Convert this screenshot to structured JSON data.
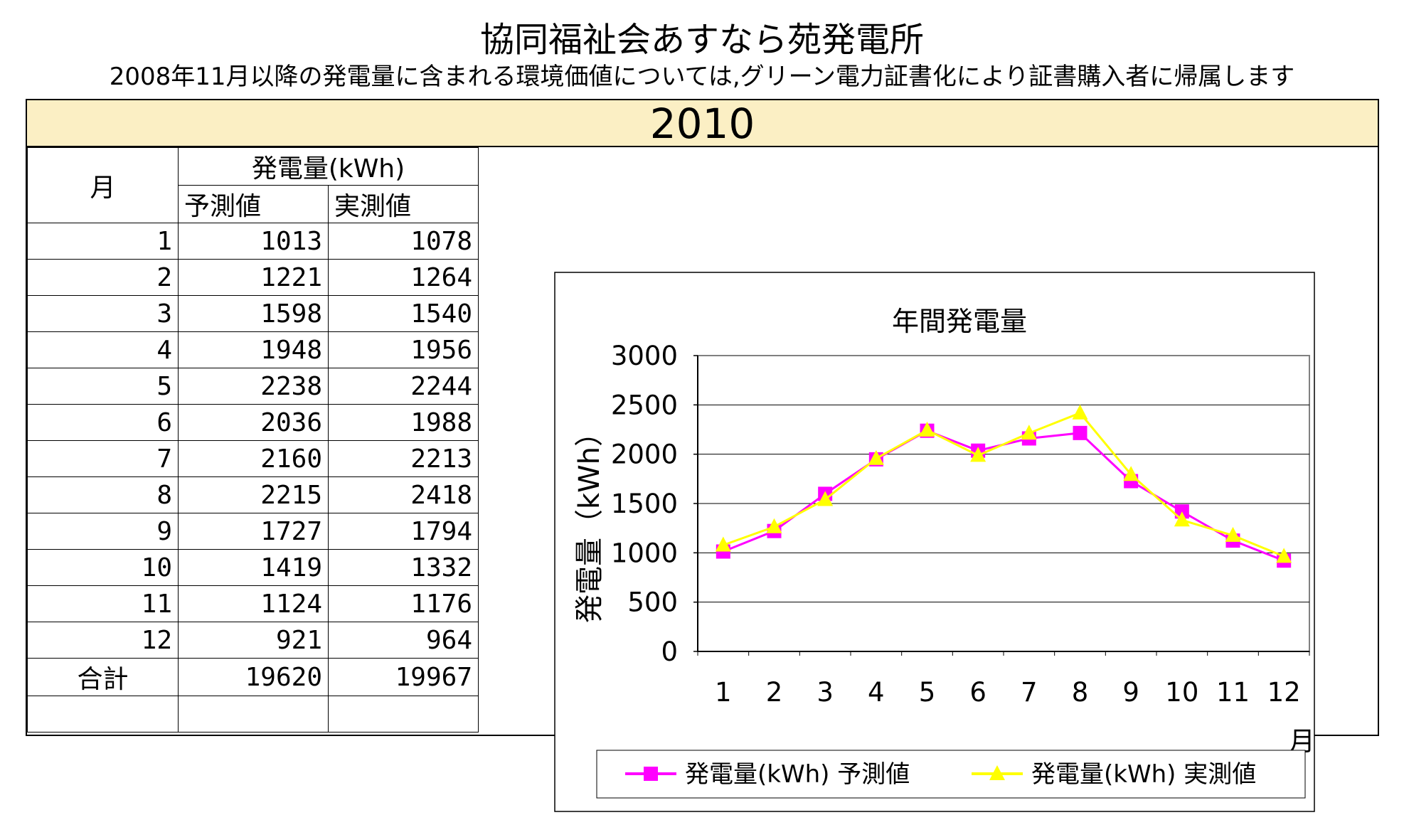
{
  "header": {
    "title": "協同福祉会あすなら苑発電所",
    "subtitle": "2008年11月以降の発電量に含まれる環境価値については,グリーン電力証書化により証書購入者に帰属します",
    "year": "2010"
  },
  "table": {
    "month_header": "月",
    "group_header": "発電量(kWh)",
    "col_forecast": "予測値",
    "col_actual": "実測値",
    "rows": [
      {
        "month": "1",
        "forecast": "1013",
        "actual": "1078"
      },
      {
        "month": "2",
        "forecast": "1221",
        "actual": "1264"
      },
      {
        "month": "3",
        "forecast": "1598",
        "actual": "1540"
      },
      {
        "month": "4",
        "forecast": "1948",
        "actual": "1956"
      },
      {
        "month": "5",
        "forecast": "2238",
        "actual": "2244"
      },
      {
        "month": "6",
        "forecast": "2036",
        "actual": "1988"
      },
      {
        "month": "7",
        "forecast": "2160",
        "actual": "2213"
      },
      {
        "month": "8",
        "forecast": "2215",
        "actual": "2418"
      },
      {
        "month": "9",
        "forecast": "1727",
        "actual": "1794"
      },
      {
        "month": "10",
        "forecast": "1419",
        "actual": "1332"
      },
      {
        "month": "11",
        "forecast": "1124",
        "actual": "1176"
      },
      {
        "month": "12",
        "forecast": "921",
        "actual": "964"
      }
    ],
    "total_label": "合計",
    "total_forecast": "19620",
    "total_actual": "19967"
  },
  "chart_data": {
    "type": "line",
    "title": "年間発電量",
    "xlabel": "月",
    "ylabel": "発電量（kWh）",
    "categories": [
      "1",
      "2",
      "3",
      "4",
      "5",
      "6",
      "7",
      "8",
      "9",
      "10",
      "11",
      "12"
    ],
    "ylim": [
      0,
      3000
    ],
    "yticks": [
      0,
      500,
      1000,
      1500,
      2000,
      2500,
      3000
    ],
    "grid": true,
    "legend_position": "bottom",
    "series": [
      {
        "name": "発電量(kWh) 予測値",
        "color": "#ff00ff",
        "marker": "square",
        "values": [
          1013,
          1221,
          1598,
          1948,
          2238,
          2036,
          2160,
          2215,
          1727,
          1419,
          1124,
          921
        ]
      },
      {
        "name": "発電量(kWh) 実測値",
        "color": "#ffff00",
        "marker": "triangle",
        "values": [
          1078,
          1264,
          1540,
          1956,
          2244,
          1988,
          2213,
          2418,
          1794,
          1332,
          1176,
          964
        ]
      }
    ]
  },
  "colors": {
    "year_band": "#fbefc4"
  }
}
